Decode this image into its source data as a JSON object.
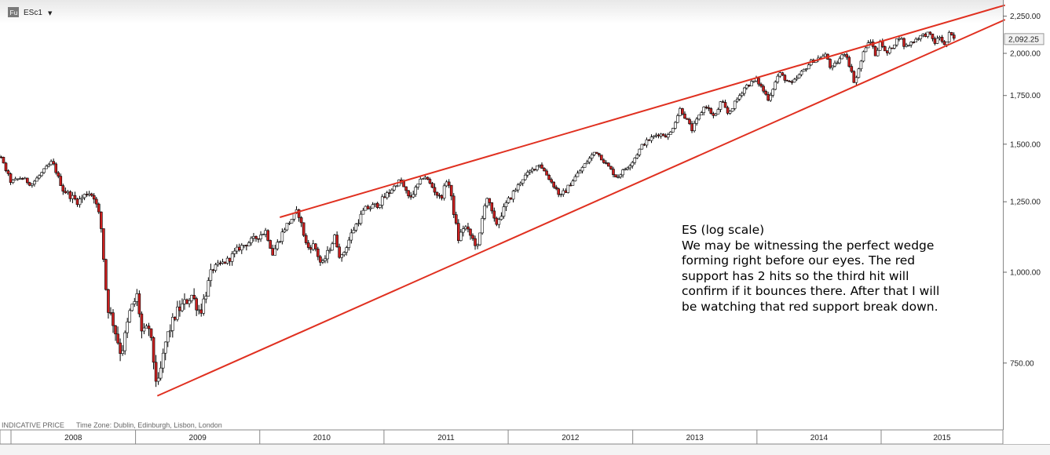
{
  "header": {
    "symbol_box": "Fu",
    "symbol": "ESc1",
    "dropdown_glyph": "▼"
  },
  "footer": {
    "indicative": "INDICATIVE PRICE",
    "timezone": "Time Zone: Dublin, Edinburgh, Lisbon, London"
  },
  "annotation": {
    "lines": [
      "ES (log scale)",
      "We may be witnessing the perfect wedge",
      "forming right before our eyes. The red",
      "support has 2 hits so the third hit will",
      "confirm if it bounces there. After that I will",
      "be watching that red support break down."
    ]
  },
  "colors": {
    "trendline": "#e03020",
    "candle_up": "#ffffff",
    "candle_down": "#cc2020",
    "wick": "#000000",
    "last_price_box": "#f2f2f2"
  },
  "chart_data": {
    "type": "candlestick",
    "y_scale": "log",
    "ylim": [
      630,
      2350
    ],
    "y_ticks": [
      {
        "value": 750,
        "label": "750.00"
      },
      {
        "value": 1000,
        "label": "1,000.00"
      },
      {
        "value": 1250,
        "label": "1,250.00"
      },
      {
        "value": 1500,
        "label": "1,500.00"
      },
      {
        "value": 1750,
        "label": "1,750.00"
      },
      {
        "value": 2000,
        "label": "2,000.00"
      },
      {
        "value": 2250,
        "label": "2,250.00"
      }
    ],
    "last_price": {
      "value": 2092.25,
      "label": "2,092.25"
    },
    "x_range": [
      "2007-10-01",
      "2015-12-31"
    ],
    "x_years": [
      {
        "label": "2008",
        "start": "2008-01-01"
      },
      {
        "label": "2009",
        "start": "2009-01-01"
      },
      {
        "label": "2010",
        "start": "2010-01-01"
      },
      {
        "label": "2011",
        "start": "2011-01-01"
      },
      {
        "label": "2012",
        "start": "2012-01-01"
      },
      {
        "label": "2013",
        "start": "2013-01-01"
      },
      {
        "label": "2014",
        "start": "2014-01-01"
      },
      {
        "label": "2015",
        "start": "2015-01-01"
      }
    ],
    "price_path": [
      [
        "2007-10-01",
        1510
      ],
      [
        "2007-11-01",
        1470
      ],
      [
        "2007-12-01",
        1440
      ],
      [
        "2008-01-01",
        1330
      ],
      [
        "2008-02-01",
        1350
      ],
      [
        "2008-03-01",
        1320
      ],
      [
        "2008-05-01",
        1420
      ],
      [
        "2008-06-01",
        1300
      ],
      [
        "2008-07-15",
        1250
      ],
      [
        "2008-08-15",
        1290
      ],
      [
        "2008-09-01",
        1270
      ],
      [
        "2008-09-20",
        1180
      ],
      [
        "2008-10-10",
        900
      ],
      [
        "2008-10-25",
        860
      ],
      [
        "2008-11-20",
        770
      ],
      [
        "2008-12-15",
        880
      ],
      [
        "2009-01-06",
        930
      ],
      [
        "2009-01-20",
        820
      ],
      [
        "2009-02-10",
        840
      ],
      [
        "2009-03-06",
        690
      ],
      [
        "2009-04-01",
        810
      ],
      [
        "2009-05-01",
        880
      ],
      [
        "2009-06-15",
        930
      ],
      [
        "2009-07-10",
        880
      ],
      [
        "2009-08-15",
        1010
      ],
      [
        "2009-10-01",
        1040
      ],
      [
        "2009-11-01",
        1080
      ],
      [
        "2009-12-15",
        1110
      ],
      [
        "2010-01-19",
        1140
      ],
      [
        "2010-02-08",
        1060
      ],
      [
        "2010-03-15",
        1150
      ],
      [
        "2010-04-23",
        1215
      ],
      [
        "2010-05-20",
        1080
      ],
      [
        "2010-06-10",
        1090
      ],
      [
        "2010-07-02",
        1020
      ],
      [
        "2010-08-10",
        1120
      ],
      [
        "2010-08-27",
        1040
      ],
      [
        "2010-10-01",
        1140
      ],
      [
        "2010-11-05",
        1220
      ],
      [
        "2010-12-15",
        1240
      ],
      [
        "2011-02-18",
        1340
      ],
      [
        "2011-03-16",
        1260
      ],
      [
        "2011-04-29",
        1360
      ],
      [
        "2011-06-16",
        1260
      ],
      [
        "2011-07-07",
        1350
      ],
      [
        "2011-08-08",
        1110
      ],
      [
        "2011-08-25",
        1160
      ],
      [
        "2011-10-04",
        1080
      ],
      [
        "2011-10-28",
        1280
      ],
      [
        "2011-11-25",
        1160
      ],
      [
        "2011-12-30",
        1250
      ],
      [
        "2012-02-15",
        1350
      ],
      [
        "2012-04-02",
        1410
      ],
      [
        "2012-06-04",
        1270
      ],
      [
        "2012-07-15",
        1350
      ],
      [
        "2012-09-14",
        1470
      ],
      [
        "2012-11-15",
        1350
      ],
      [
        "2012-12-31",
        1420
      ],
      [
        "2013-01-31",
        1500
      ],
      [
        "2013-03-15",
        1550
      ],
      [
        "2013-04-18",
        1540
      ],
      [
        "2013-05-21",
        1680
      ],
      [
        "2013-06-24",
        1570
      ],
      [
        "2013-08-02",
        1700
      ],
      [
        "2013-08-30",
        1630
      ],
      [
        "2013-09-18",
        1720
      ],
      [
        "2013-10-08",
        1650
      ],
      [
        "2013-11-27",
        1800
      ],
      [
        "2013-12-31",
        1840
      ],
      [
        "2014-02-04",
        1730
      ],
      [
        "2014-03-07",
        1880
      ],
      [
        "2014-04-11",
        1810
      ],
      [
        "2014-06-10",
        1950
      ],
      [
        "2014-07-24",
        1990
      ],
      [
        "2014-08-07",
        1900
      ],
      [
        "2014-09-18",
        2010
      ],
      [
        "2014-10-15",
        1820
      ],
      [
        "2014-11-15",
        2040
      ],
      [
        "2014-12-05",
        2080
      ],
      [
        "2014-12-16",
        1970
      ],
      [
        "2014-12-29",
        2090
      ],
      [
        "2015-01-15",
        1990
      ],
      [
        "2015-02-25",
        2115
      ],
      [
        "2015-03-11",
        2040
      ],
      [
        "2015-04-24",
        2110
      ],
      [
        "2015-05-20",
        2130
      ],
      [
        "2015-06-08",
        2070
      ],
      [
        "2015-06-23",
        2110
      ],
      [
        "2015-07-08",
        2040
      ],
      [
        "2015-07-20",
        2125
      ],
      [
        "2015-08-05",
        2092
      ]
    ],
    "trendlines": [
      {
        "role": "resistance",
        "from": [
          "2010-03-01",
          1190
        ],
        "to": [
          "2015-12-31",
          2330
        ]
      },
      {
        "role": "support",
        "from": [
          "2009-03-06",
          676
        ],
        "to": [
          "2015-12-31",
          2225
        ]
      }
    ]
  }
}
